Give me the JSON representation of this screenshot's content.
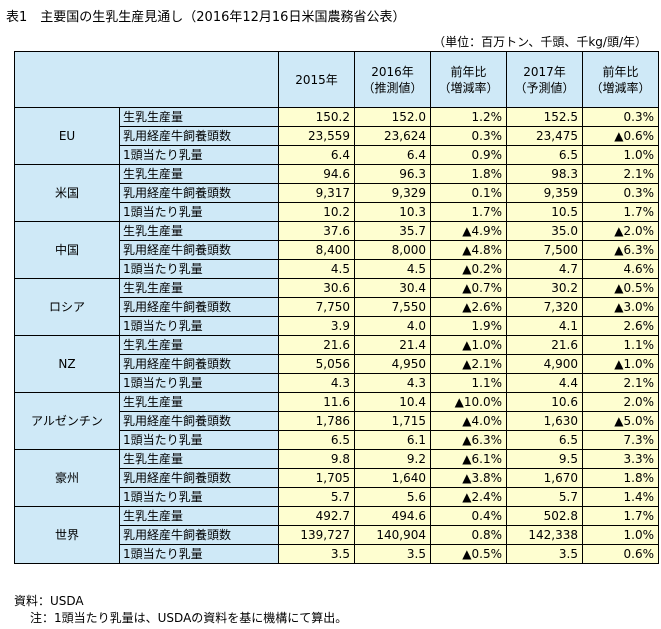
{
  "title": "表1　主要国の生乳生産見通し（2016年12月16日米国農務省公表）",
  "unit": "（単位：百万トン、千頭、千kg/頭/年）",
  "headers": {
    "y2015": "2015年",
    "y2016_1": "2016年",
    "y2016_2": "（推測値）",
    "yoy_1": "前年比",
    "yoy_2": "（増減率）",
    "y2017_1": "2017年",
    "y2017_2": "（予測値）"
  },
  "items": [
    "生乳生産量",
    "乳用経産牛飼養頭数",
    "1頭当たり乳量"
  ],
  "countries": [
    {
      "name": "EU",
      "rows": [
        [
          "150.2",
          "152.0",
          "1.2%",
          "152.5",
          "0.3%"
        ],
        [
          "23,559",
          "23,624",
          "0.3%",
          "23,475",
          "▲0.6%"
        ],
        [
          "6.4",
          "6.4",
          "0.9%",
          "6.5",
          "1.0%"
        ]
      ]
    },
    {
      "name": "米国",
      "rows": [
        [
          "94.6",
          "96.3",
          "1.8%",
          "98.3",
          "2.1%"
        ],
        [
          "9,317",
          "9,329",
          "0.1%",
          "9,359",
          "0.3%"
        ],
        [
          "10.2",
          "10.3",
          "1.7%",
          "10.5",
          "1.7%"
        ]
      ]
    },
    {
      "name": "中国",
      "rows": [
        [
          "37.6",
          "35.7",
          "▲4.9%",
          "35.0",
          "▲2.0%"
        ],
        [
          "8,400",
          "8,000",
          "▲4.8%",
          "7,500",
          "▲6.3%"
        ],
        [
          "4.5",
          "4.5",
          "▲0.2%",
          "4.7",
          "4.6%"
        ]
      ]
    },
    {
      "name": "ロシア",
      "rows": [
        [
          "30.6",
          "30.4",
          "▲0.7%",
          "30.2",
          "▲0.5%"
        ],
        [
          "7,750",
          "7,550",
          "▲2.6%",
          "7,320",
          "▲3.0%"
        ],
        [
          "3.9",
          "4.0",
          "1.9%",
          "4.1",
          "2.6%"
        ]
      ]
    },
    {
      "name": "NZ",
      "rows": [
        [
          "21.6",
          "21.4",
          "▲1.0%",
          "21.6",
          "1.1%"
        ],
        [
          "5,056",
          "4,950",
          "▲2.1%",
          "4,900",
          "▲1.0%"
        ],
        [
          "4.3",
          "4.3",
          "1.1%",
          "4.4",
          "2.1%"
        ]
      ]
    },
    {
      "name": "アルゼンチン",
      "rows": [
        [
          "11.6",
          "10.4",
          "▲10.0%",
          "10.6",
          "2.0%"
        ],
        [
          "1,786",
          "1,715",
          "▲4.0%",
          "1,630",
          "▲5.0%"
        ],
        [
          "6.5",
          "6.1",
          "▲6.3%",
          "6.5",
          "7.3%"
        ]
      ]
    },
    {
      "name": "豪州",
      "rows": [
        [
          "9.8",
          "9.2",
          "▲6.1%",
          "9.5",
          "3.3%"
        ],
        [
          "1,705",
          "1,640",
          "▲3.8%",
          "1,670",
          "1.8%"
        ],
        [
          "5.7",
          "5.6",
          "▲2.4%",
          "5.7",
          "1.4%"
        ]
      ]
    },
    {
      "name": "世界",
      "rows": [
        [
          "492.7",
          "494.6",
          "0.4%",
          "502.8",
          "1.7%"
        ],
        [
          "139,727",
          "140,904",
          "0.8%",
          "142,338",
          "1.0%"
        ],
        [
          "3.5",
          "3.5",
          "▲0.5%",
          "3.5",
          "0.6%"
        ]
      ]
    }
  ],
  "footnotes": {
    "source": "資料：USDA",
    "note": "注：1頭当たり乳量は、USDAの資料を基に機構にて算出。"
  },
  "colors": {
    "header_bg": "#cfe9f7",
    "value_bg": "#fefed0"
  }
}
